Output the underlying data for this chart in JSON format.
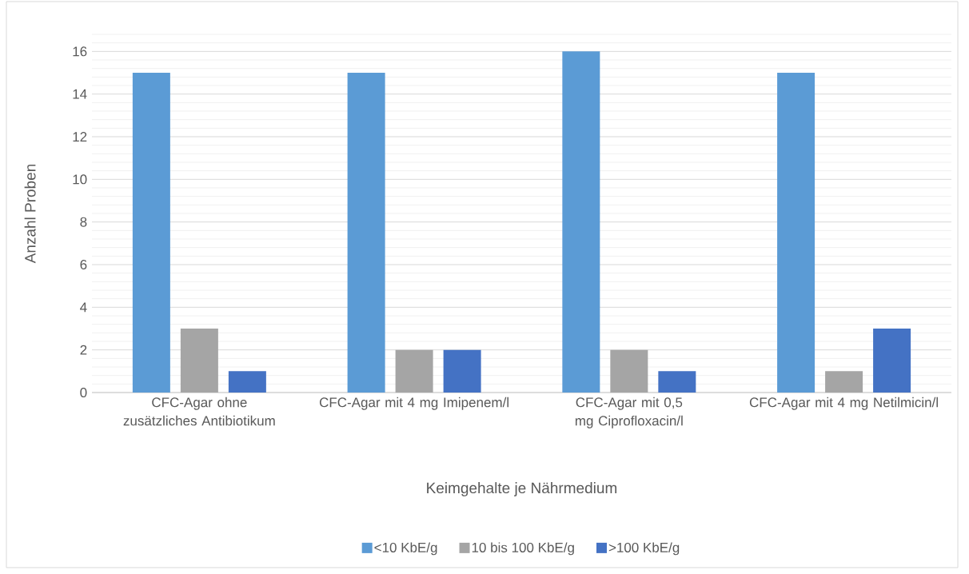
{
  "chart_data": {
    "type": "bar",
    "xlabel": "Keimgehalte je Nährmedium",
    "ylabel": "Anzahl Proben",
    "categories": [
      "CFC-Agar ohne zusätzliches Antibiotikum",
      "CFC-Agar mit 4 mg Imipenem/l",
      "CFC-Agar mit 0,5 mg Ciprofloxacin/l",
      "CFC-Agar mit 4 mg Netilmicin/l"
    ],
    "series": [
      {
        "name": "<10 KbE/g",
        "color": "#5b9bd5",
        "values": [
          15,
          15,
          16,
          15
        ]
      },
      {
        "name": "10 bis 100 KbE/g",
        "color": "#a5a5a5",
        "values": [
          3,
          2,
          2,
          1
        ]
      },
      {
        "name": ">100 KbE/g",
        "color": "#4472c4",
        "values": [
          1,
          2,
          1,
          3
        ]
      }
    ],
    "ylim": [
      0,
      16.8
    ],
    "yticks": [
      0,
      {
        "value": 0.4,
        "label": null
      },
      {
        "value": 0.8,
        "label": null
      },
      {
        "value": 1.2,
        "label": null
      },
      {
        "value": 1.6,
        "label": null
      },
      2,
      {
        "value": 2.4,
        "label": null
      },
      {
        "value": 2.8,
        "label": null
      },
      {
        "value": 3.2,
        "label": null
      },
      {
        "value": 3.6,
        "label": null
      },
      4,
      {
        "value": 4.4,
        "label": null
      },
      {
        "value": 4.8,
        "label": null
      },
      {
        "value": 5.2,
        "label": null
      },
      {
        "value": 5.6,
        "label": null
      },
      6,
      {
        "value": 6.4,
        "label": null
      },
      {
        "value": 6.8,
        "label": null
      },
      {
        "value": 7.2,
        "label": null
      },
      {
        "value": 7.6,
        "label": null
      },
      8,
      {
        "value": 8.4,
        "label": null
      },
      {
        "value": 8.8,
        "label": null
      },
      {
        "value": 9.2,
        "label": null
      },
      {
        "value": 9.6,
        "label": null
      },
      10,
      {
        "value": 10.4,
        "label": null
      },
      {
        "value": 10.8,
        "label": null
      },
      {
        "value": 11.2,
        "label": null
      },
      {
        "value": 11.6,
        "label": null
      },
      12,
      {
        "value": 12.4,
        "label": null
      },
      {
        "value": 12.8,
        "label": null
      },
      {
        "value": 13.2,
        "label": null
      },
      {
        "value": 13.6,
        "label": null
      },
      14,
      {
        "value": 14.4,
        "label": null
      },
      {
        "value": 14.8,
        "label": null
      },
      {
        "value": 15.2,
        "label": null
      },
      {
        "value": 15.6,
        "label": null
      },
      16,
      {
        "value": 16.4,
        "label": null
      },
      {
        "value": 16.8,
        "label": null
      }
    ],
    "grid": "y",
    "legend": "bottom"
  }
}
